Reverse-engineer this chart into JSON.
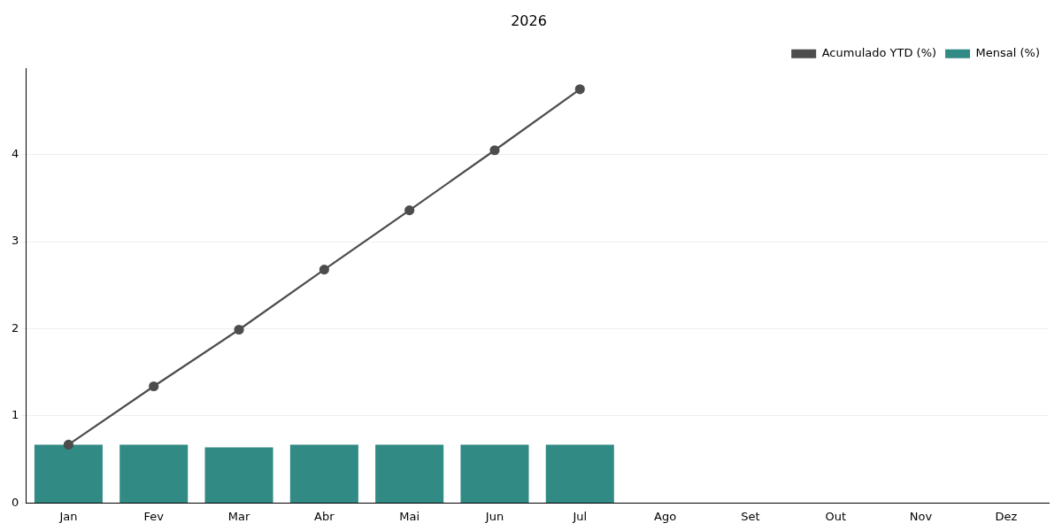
{
  "chart_data": {
    "type": "bar",
    "title": "2026",
    "categories": [
      "Jan",
      "Fev",
      "Mar",
      "Abr",
      "Mai",
      "Jun",
      "Jul",
      "Ago",
      "Set",
      "Out",
      "Nov",
      "Dez"
    ],
    "series": [
      {
        "name": "Acumulado YTD (%)",
        "type": "line",
        "color": "#4d4d4d",
        "marker": "circle",
        "values": [
          0.67,
          1.34,
          1.99,
          2.68,
          3.36,
          4.05,
          4.75,
          null,
          null,
          null,
          null,
          null
        ]
      },
      {
        "name": "Mensal (%)",
        "color": "#318a84",
        "values": [
          0.67,
          0.67,
          0.64,
          0.67,
          0.67,
          0.67,
          0.67,
          null,
          null,
          null,
          null,
          null
        ]
      }
    ],
    "ylim": [
      0,
      4.99
    ],
    "yticks": [
      0,
      1,
      2,
      3,
      4
    ],
    "grid": "y",
    "legend": "top right"
  }
}
